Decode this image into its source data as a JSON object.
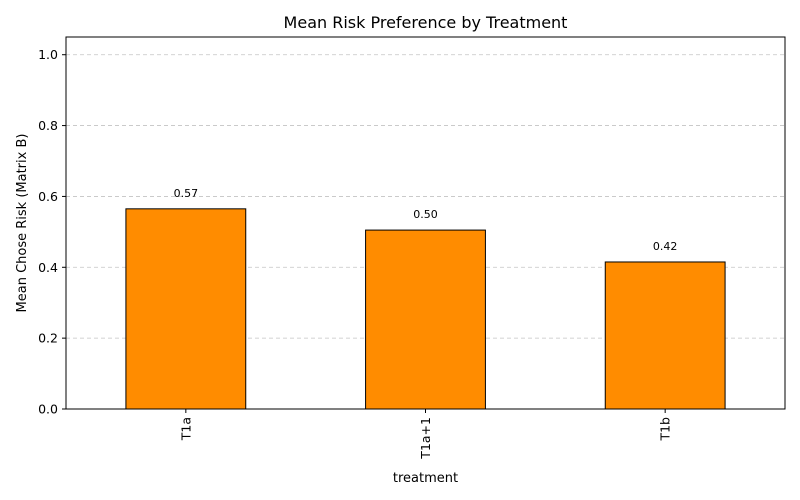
{
  "chart_data": {
    "type": "bar",
    "title": "Mean Risk Preference by Treatment",
    "xlabel": "treatment",
    "ylabel": "Mean Chose Risk (Matrix B)",
    "categories": [
      "T1a",
      "T1a+1",
      "T1b"
    ],
    "values": [
      0.565,
      0.505,
      0.415
    ],
    "value_labels": [
      "0.57",
      "0.50",
      "0.42"
    ],
    "ylim": [
      0,
      1.05
    ],
    "yticks": [
      0.0,
      0.2,
      0.4,
      0.6,
      0.8,
      1.0
    ],
    "ytick_labels": [
      "0.0",
      "0.2",
      "0.4",
      "0.6",
      "0.8",
      "1.0"
    ],
    "grid": "y-dashed",
    "bar_color": "#ff8c00",
    "edge_color": "#000000"
  }
}
